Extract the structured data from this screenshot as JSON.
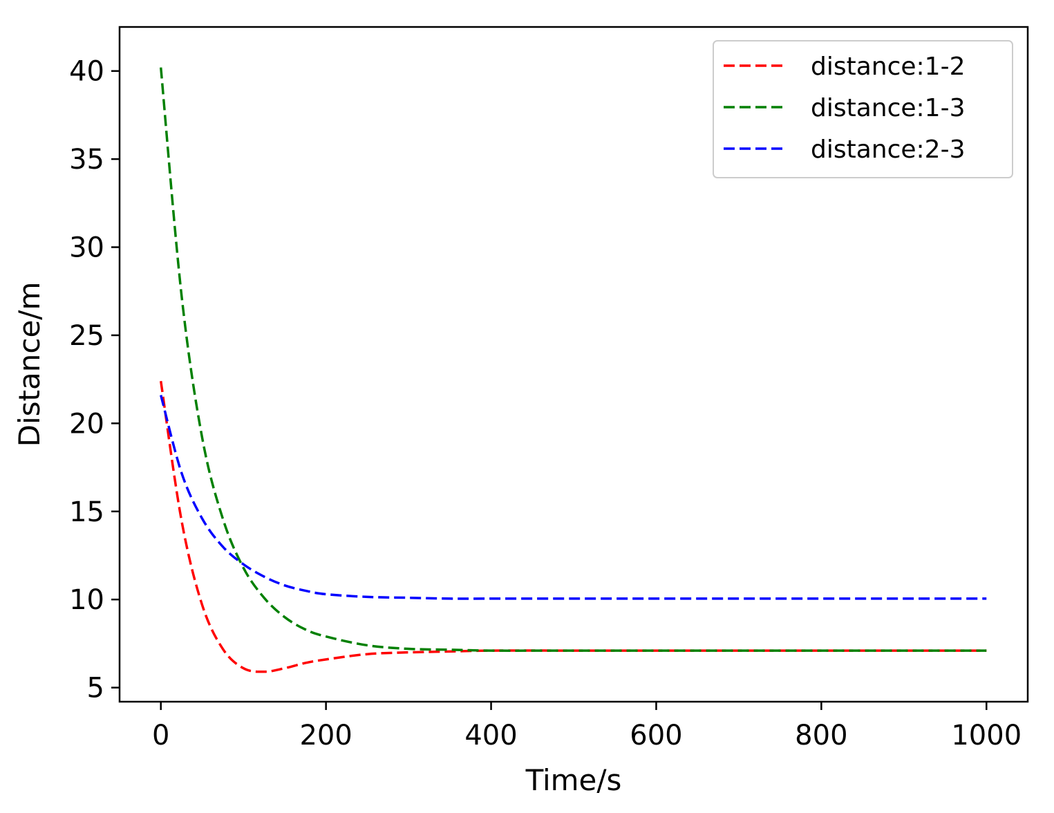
{
  "chart_data": {
    "type": "line",
    "title": "",
    "xlabel": "Time/s",
    "ylabel": "Distance/m",
    "xlim": [
      -50,
      1050
    ],
    "ylim": [
      4.2,
      42.5
    ],
    "xticks": [
      0,
      200,
      400,
      600,
      800,
      1000
    ],
    "xtick_labels": [
      "0",
      "200",
      "400",
      "600",
      "800",
      "1000"
    ],
    "yticks": [
      5,
      10,
      15,
      20,
      25,
      30,
      35,
      40
    ],
    "ytick_labels": [
      "5",
      "10",
      "15",
      "20",
      "25",
      "30",
      "35",
      "40"
    ],
    "grid": false,
    "legend_position": "top-right",
    "x": [
      0,
      25,
      50,
      75,
      100,
      125,
      150,
      175,
      200,
      250,
      300,
      350,
      400,
      500,
      600,
      700,
      800,
      900,
      1000
    ],
    "series": [
      {
        "name": "distance:1-2",
        "color": "#ff0000",
        "style": "dashed",
        "values": [
          22.4,
          14.5,
          9.7,
          7.2,
          6.1,
          5.9,
          6.1,
          6.4,
          6.6,
          6.9,
          7.0,
          7.05,
          7.1,
          7.1,
          7.1,
          7.1,
          7.1,
          7.1,
          7.1
        ]
      },
      {
        "name": "distance:1-3",
        "color": "#008000",
        "style": "dashed",
        "values": [
          40.2,
          27.3,
          19.2,
          14.6,
          11.8,
          10.1,
          9.0,
          8.3,
          7.9,
          7.4,
          7.2,
          7.15,
          7.1,
          7.1,
          7.1,
          7.1,
          7.1,
          7.1,
          7.1
        ]
      },
      {
        "name": "distance:2-3",
        "color": "#0000ff",
        "style": "dashed",
        "values": [
          21.6,
          17.2,
          14.6,
          13.0,
          12.0,
          11.3,
          10.8,
          10.5,
          10.3,
          10.15,
          10.1,
          10.05,
          10.05,
          10.05,
          10.05,
          10.05,
          10.05,
          10.05,
          10.05
        ]
      }
    ]
  }
}
